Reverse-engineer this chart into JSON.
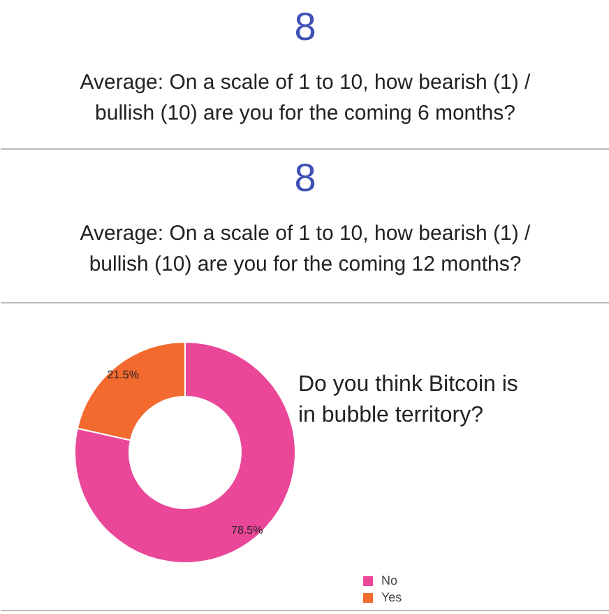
{
  "chart_data": [
    {
      "type": "other",
      "values": [
        8
      ],
      "data_labels": true,
      "title": "Average: On a scale of 1 to 10, how bearish (1) / bullish (10) are you for the coming 6 months?"
    },
    {
      "type": "other",
      "values": [
        8
      ],
      "data_labels": true,
      "title": "Average: On a scale of 1 to 10, how bearish (1) / bullish (10) are you for the coming 12 months?"
    },
    {
      "type": "donut",
      "title": "Do you think Bitcoin is in bubble territory?",
      "categories": [
        "No",
        "Yes"
      ],
      "values": [
        78.5,
        21.5
      ],
      "colors": [
        "#ea4799",
        "#f26a2e"
      ],
      "value_labels": [
        "78.5%",
        "21.5%"
      ],
      "legend": "bottom right"
    }
  ]
}
